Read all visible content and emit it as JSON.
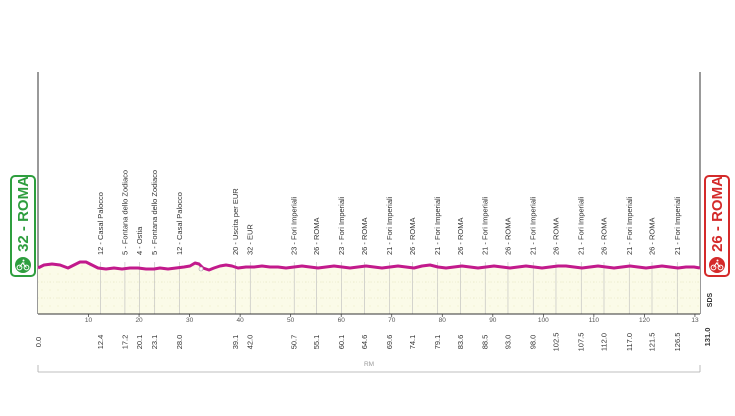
{
  "start": {
    "label": "32 - ROMA",
    "color": "#2e9e3e",
    "icon": "cyclist-icon"
  },
  "finish": {
    "label": "26 - ROMA",
    "color": "#d42a2a",
    "icon": "cyclist-icon"
  },
  "profile_color": "#c21a8c",
  "km_start_label": "0.0",
  "km_end_label": "131.0",
  "distance_ticks": [
    "10",
    "20",
    "30",
    "40",
    "50",
    "60",
    "70",
    "80",
    "90",
    "100",
    "110",
    "120",
    "13"
  ],
  "waypoints": [
    {
      "km": 12.4,
      "km_label": "12.4",
      "label": "12 - Casal Palocco"
    },
    {
      "km": 17.2,
      "km_label": "17.2",
      "label": "5 - Fontana dello Zodiaco"
    },
    {
      "km": 20.1,
      "km_label": "20.1",
      "label": "4 - Ostia"
    },
    {
      "km": 23.1,
      "km_label": "23.1",
      "label": "5 - Fontana dello Zodiaco"
    },
    {
      "km": 28.0,
      "km_label": "28.0",
      "label": "12 - Casal Palocco"
    },
    {
      "km": 39.1,
      "km_label": "39.1",
      "label": "20 - Uscita per EUR"
    },
    {
      "km": 42.0,
      "km_label": "42.0",
      "label": "32 - EUR"
    },
    {
      "km": 50.7,
      "km_label": "50.7",
      "label": "23 - Fori Imperiali"
    },
    {
      "km": 55.1,
      "km_label": "55.1",
      "label": "26 - ROMA"
    },
    {
      "km": 60.1,
      "km_label": "60.1",
      "label": "23 - Fori Imperiali"
    },
    {
      "km": 64.6,
      "km_label": "64.6",
      "label": "26 - ROMA"
    },
    {
      "km": 69.6,
      "km_label": "69.6",
      "label": "21 - Fori Imperiali"
    },
    {
      "km": 74.1,
      "km_label": "74.1",
      "label": "26 - ROMA"
    },
    {
      "km": 79.1,
      "km_label": "79.1",
      "label": "21 - Fori Imperiali"
    },
    {
      "km": 83.6,
      "km_label": "83.6",
      "label": "26 - ROMA"
    },
    {
      "km": 88.5,
      "km_label": "88.5",
      "label": "21 - Fori Imperiali"
    },
    {
      "km": 93.0,
      "km_label": "93.0",
      "label": "26 - ROMA"
    },
    {
      "km": 98.0,
      "km_label": "98.0",
      "label": "21 - Fori Imperiali"
    },
    {
      "km": 102.5,
      "km_label": "102.5",
      "label": "26 - ROMA"
    },
    {
      "km": 107.5,
      "km_label": "107.5",
      "label": "21 - Fori Imperiali"
    },
    {
      "km": 112.0,
      "km_label": "112.0",
      "label": "26 - ROMA"
    },
    {
      "km": 117.0,
      "km_label": "117.0",
      "label": "21 - Fori Imperiali"
    },
    {
      "km": 121.5,
      "km_label": "121.5",
      "label": "26 - ROMA"
    },
    {
      "km": 126.5,
      "km_label": "126.5",
      "label": "21 - Fori Imperiali"
    }
  ],
  "bottom_bracket_label": "RM",
  "sds_label": "SDS"
}
